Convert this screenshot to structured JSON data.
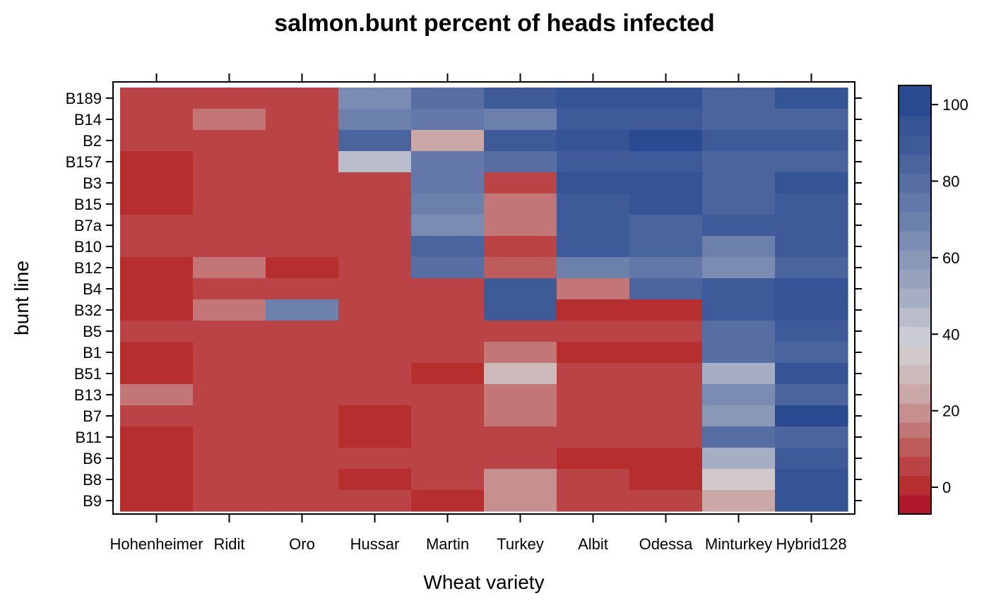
{
  "chart_data": {
    "type": "heatmap",
    "title": "salmon.bunt percent of heads infected",
    "xlabel": "Wheat variety",
    "ylabel": "bunt line",
    "x_categories": [
      "Hohenheimer",
      "Ridit",
      "Oro",
      "Hussar",
      "Martin",
      "Turkey",
      "Albit",
      "Odessa",
      "Minturkey",
      "Hybrid128"
    ],
    "y_categories": [
      "B189",
      "B14",
      "B2",
      "B157",
      "B3",
      "B15",
      "B7a",
      "B10",
      "B12",
      "B4",
      "B32",
      "B5",
      "B1",
      "B51",
      "B13",
      "B7",
      "B11",
      "B6",
      "B8",
      "B9"
    ],
    "values": [
      [
        3,
        3,
        3,
        62,
        77,
        87,
        92,
        92,
        82,
        92
      ],
      [
        3,
        13,
        3,
        67,
        72,
        67,
        87,
        87,
        82,
        82
      ],
      [
        3,
        3,
        3,
        82,
        22,
        87,
        92,
        102,
        87,
        87
      ],
      [
        -2,
        3,
        3,
        42,
        72,
        77,
        87,
        87,
        82,
        82
      ],
      [
        -2,
        3,
        3,
        3,
        72,
        3,
        92,
        92,
        82,
        92
      ],
      [
        -2,
        3,
        3,
        3,
        67,
        13,
        87,
        92,
        82,
        87
      ],
      [
        3,
        3,
        3,
        3,
        62,
        13,
        87,
        82,
        87,
        87
      ],
      [
        3,
        3,
        3,
        3,
        82,
        3,
        87,
        82,
        67,
        87
      ],
      [
        -2,
        13,
        -2,
        3,
        77,
        8,
        67,
        72,
        62,
        82
      ],
      [
        -2,
        3,
        3,
        3,
        3,
        87,
        13,
        82,
        87,
        92
      ],
      [
        -2,
        13,
        67,
        3,
        3,
        87,
        -2,
        -2,
        87,
        92
      ],
      [
        3,
        3,
        3,
        3,
        3,
        3,
        3,
        3,
        77,
        87
      ],
      [
        -2,
        3,
        3,
        3,
        3,
        13,
        -2,
        -2,
        77,
        82
      ],
      [
        -2,
        3,
        3,
        3,
        -2,
        27,
        3,
        3,
        47,
        92
      ],
      [
        13,
        3,
        3,
        3,
        3,
        13,
        3,
        3,
        62,
        82
      ],
      [
        3,
        3,
        3,
        -2,
        3,
        13,
        3,
        3,
        57,
        102
      ],
      [
        -2,
        3,
        3,
        -2,
        3,
        3,
        3,
        3,
        77,
        82
      ],
      [
        -2,
        3,
        3,
        3,
        3,
        3,
        -2,
        -2,
        47,
        87
      ],
      [
        -2,
        3,
        3,
        -2,
        3,
        17,
        3,
        -2,
        32,
        92
      ],
      [
        -2,
        3,
        3,
        3,
        -2,
        17,
        3,
        3,
        22,
        92
      ]
    ],
    "legend": {
      "position": "right",
      "range": [
        -7,
        105
      ],
      "breaks": [
        -7,
        -2,
        3,
        8,
        13,
        17,
        22,
        27,
        32,
        37,
        42,
        47,
        52,
        57,
        62,
        67,
        72,
        77,
        82,
        87,
        92,
        97,
        105
      ],
      "colors": [
        "#b2182b",
        "#b62e2e",
        "#ba4445",
        "#be5c5c",
        "#c27676",
        "#c69090",
        "#caa8a8",
        "#cdbbbb",
        "#d2caca",
        "#cbcbd3",
        "#b9bccb",
        "#a5aec3",
        "#95a1bd",
        "#8a98b8",
        "#7b8cb2",
        "#6c80ac",
        "#6378a8",
        "#566ea2",
        "#4a649e",
        "#3e5a99",
        "#345496",
        "#2a4b91"
      ],
      "ticks": [
        0,
        20,
        40,
        60,
        80,
        100
      ]
    },
    "grid": false
  }
}
